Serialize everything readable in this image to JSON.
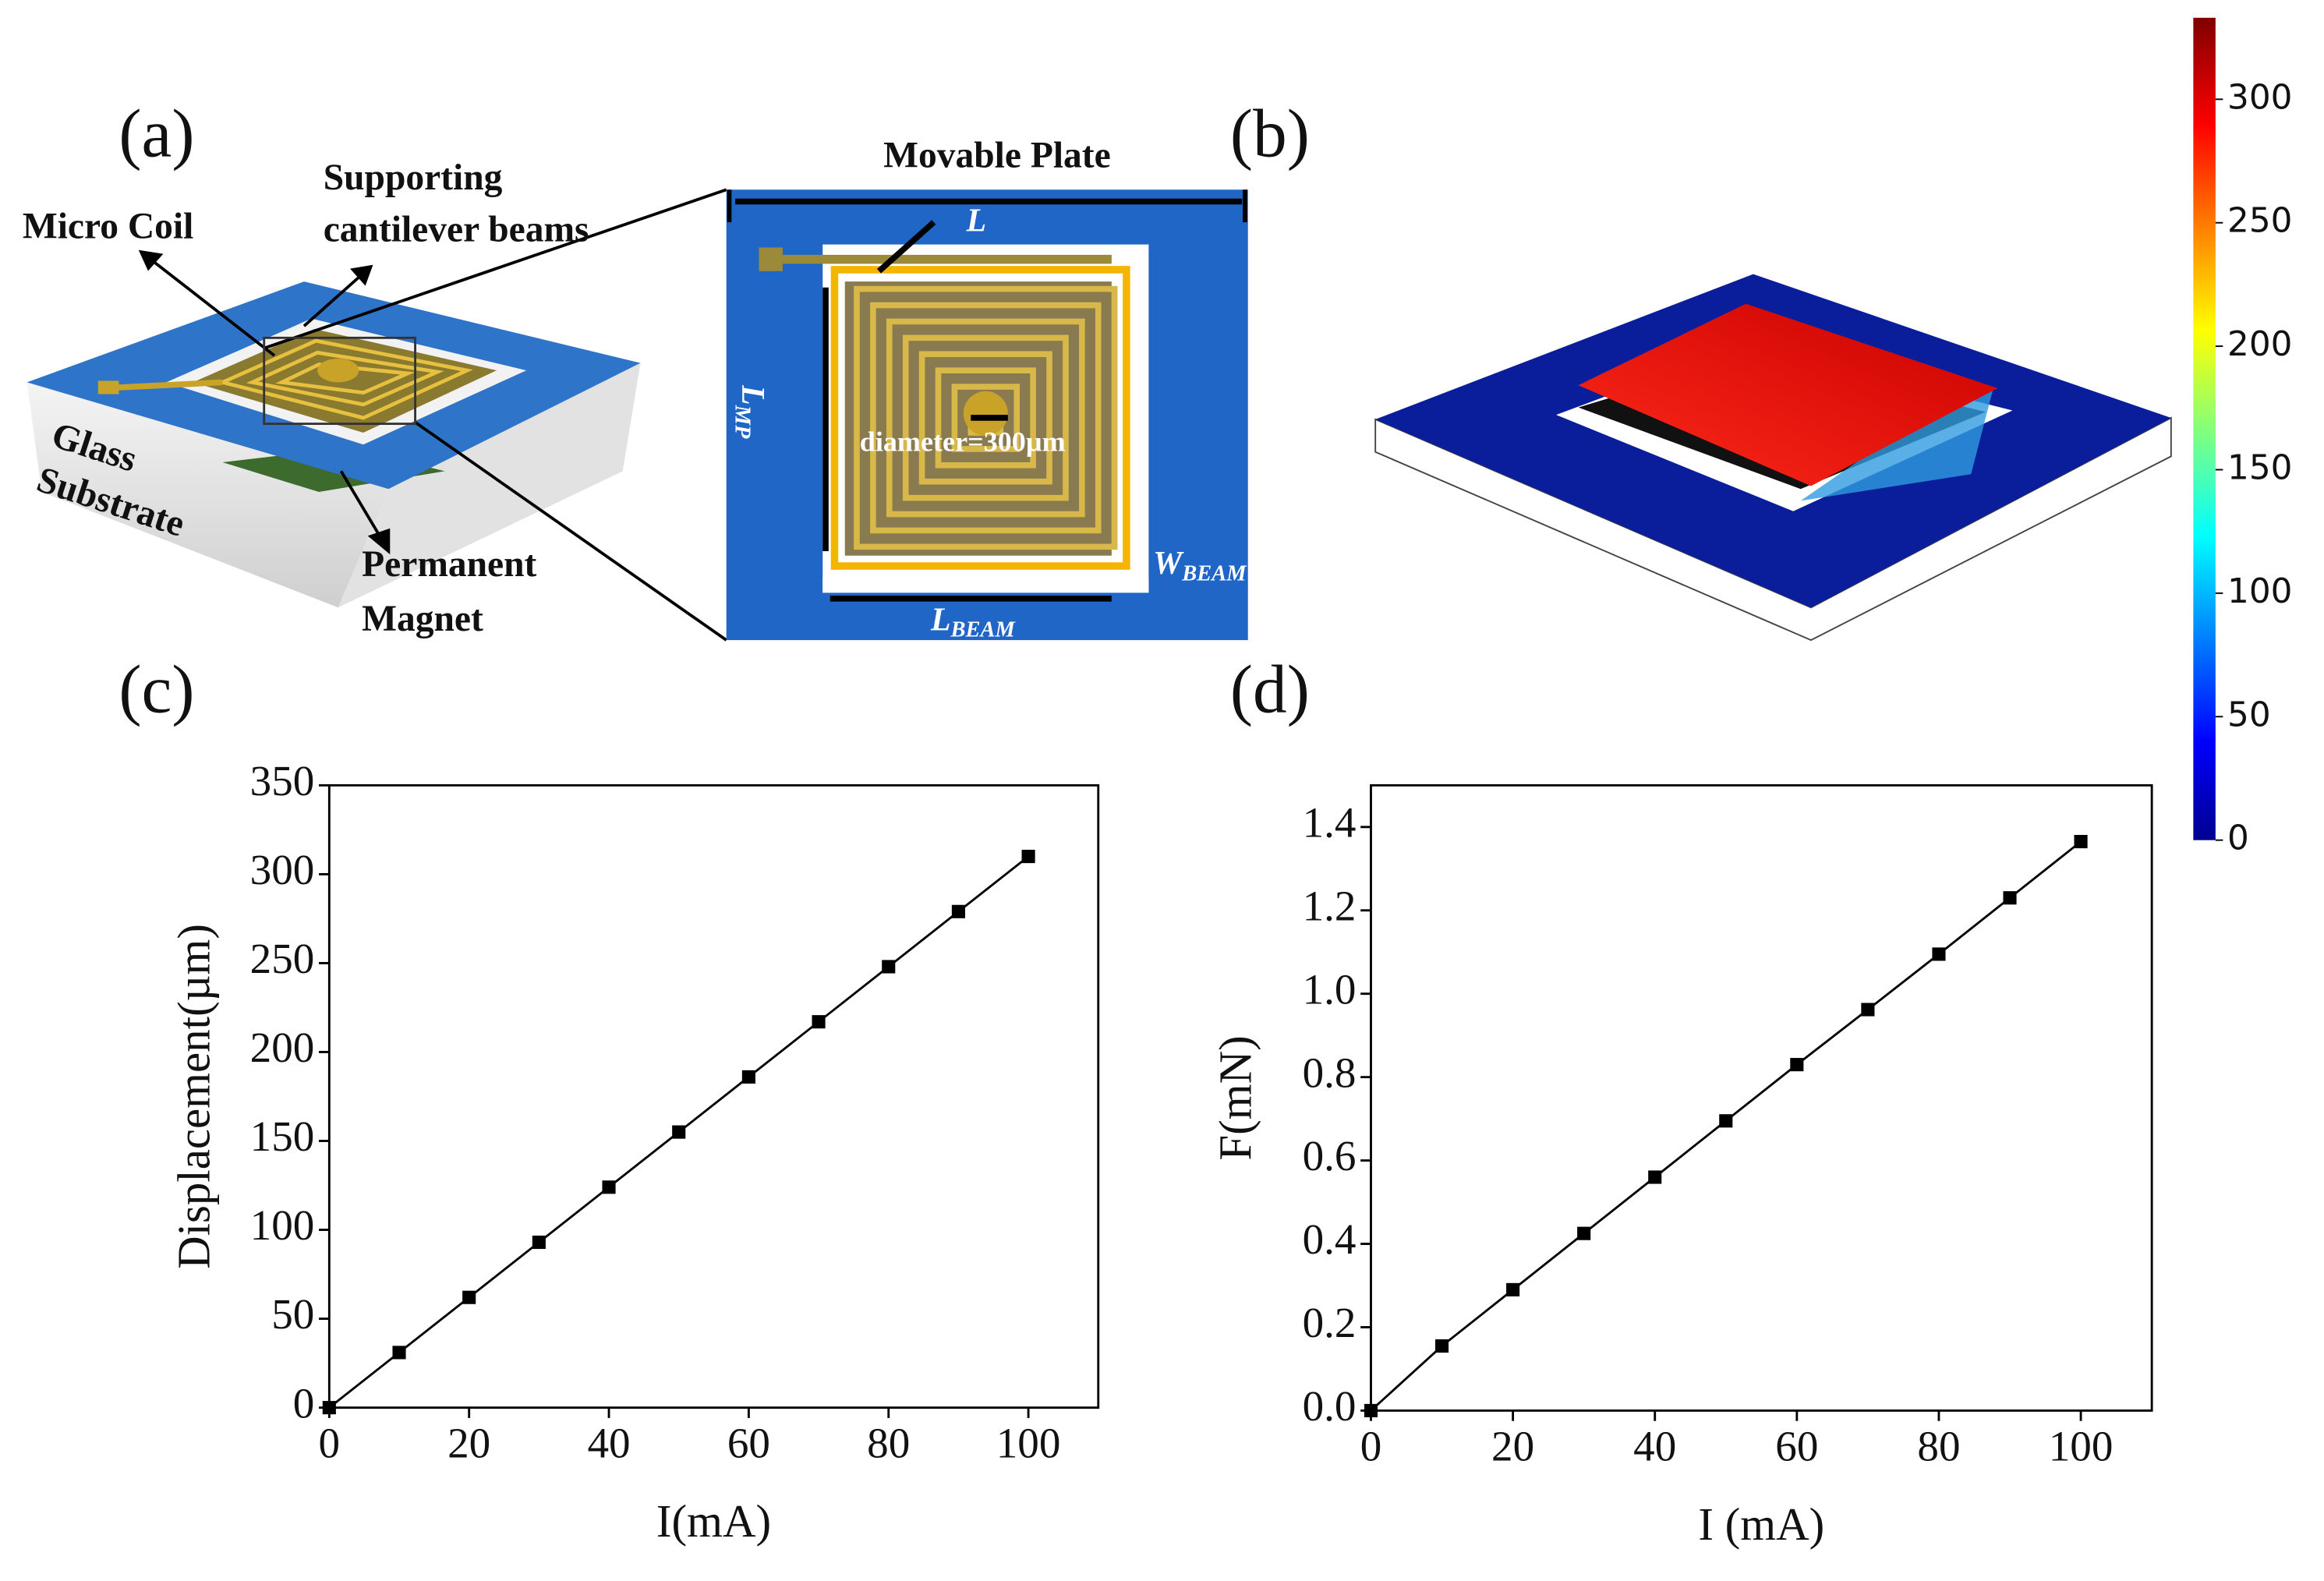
{
  "panel_labels": [
    "(a)",
    "(b)",
    "(c)",
    "(d)"
  ],
  "diagram_a": {
    "micro_coil": "Micro Coil",
    "supporting": "Supporting",
    "cantilever": "cantilever beams",
    "glass": "Glass",
    "substrate": "Substrate",
    "permanent": "Permanent",
    "magnet": "Magnet"
  },
  "inset": {
    "movable_plate": "Movable Plate",
    "L": "L",
    "L_MP": {
      "main": "L",
      "sub": "MP"
    },
    "diameter": "diameter=300µm",
    "W_BEAM": {
      "main": "W",
      "sub": "BEAM"
    },
    "L_BEAM": {
      "main": "L",
      "sub": "BEAM"
    }
  },
  "colorbar": {
    "lim": [
      0,
      333
    ],
    "ticks": [
      0,
      50,
      100,
      150,
      200,
      250,
      300
    ]
  },
  "chart_data": [
    {
      "type": "line",
      "xlabel": "I(mA)",
      "ylabel": "Displacement(µm)",
      "color": "#000000",
      "x": [
        0,
        10,
        20,
        30,
        40,
        50,
        60,
        70,
        80,
        90,
        100
      ],
      "values": [
        0,
        31,
        62,
        93,
        124,
        155,
        186,
        217,
        248,
        279,
        310
      ],
      "xlim": [
        0,
        110
      ],
      "ylim": [
        0,
        350
      ],
      "xticks": [
        0,
        20,
        40,
        60,
        80,
        100
      ],
      "yticks": [
        0,
        50,
        100,
        150,
        200,
        250,
        300,
        350
      ]
    },
    {
      "type": "line",
      "xlabel": "I (mA)",
      "ylabel": "F(mN)",
      "color": "#000000",
      "x": [
        0,
        10,
        20,
        30,
        40,
        50,
        60,
        70,
        80,
        90,
        100
      ],
      "values": [
        0,
        0.155,
        0.29,
        0.425,
        0.56,
        0.695,
        0.83,
        0.962,
        1.095,
        1.23,
        1.365
      ],
      "xlim": [
        0,
        110
      ],
      "ylim": [
        0,
        1.5
      ],
      "xticks": [
        0,
        20,
        40,
        60,
        80,
        100
      ],
      "yticks": [
        {
          "value": 0,
          "label": "0.0"
        },
        {
          "value": 0.2,
          "label": "0.2"
        },
        {
          "value": 0.4,
          "label": "0.4"
        },
        {
          "value": 0.6,
          "label": "0.6"
        },
        {
          "value": 0.8,
          "label": "0.8"
        },
        {
          "value": 1,
          "label": "1.0"
        },
        {
          "value": 1.2,
          "label": "1.2"
        },
        {
          "value": 1.4,
          "label": "1.4"
        }
      ]
    }
  ]
}
